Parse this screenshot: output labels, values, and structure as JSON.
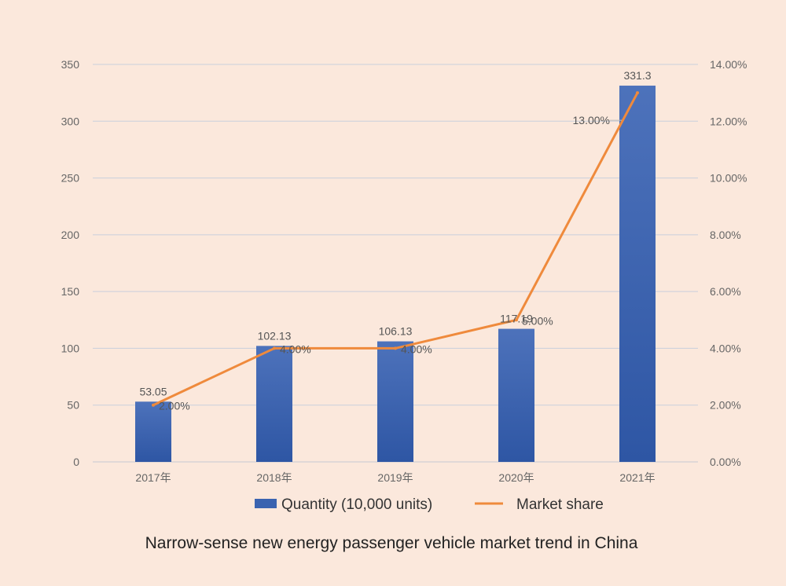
{
  "chart_data": {
    "type": "bar",
    "categories": [
      "2017年",
      "2018年",
      "2019年",
      "2020年",
      "2021年"
    ],
    "series": [
      {
        "name": "Quantity (10,000 units)",
        "type": "bar",
        "axis": "left",
        "values": [
          53.05,
          102.13,
          106.13,
          117.19,
          331.3
        ],
        "labels": [
          "53.05",
          "102.13",
          "106.13",
          "117.19",
          "331.3"
        ]
      },
      {
        "name": "Market share",
        "type": "line",
        "axis": "right",
        "values": [
          2.0,
          4.0,
          4.0,
          5.0,
          13.0
        ],
        "labels": [
          "2.00%",
          "4.00%",
          "4.00%",
          "5.00%",
          "13.00%"
        ]
      }
    ],
    "y_left": {
      "ylim": [
        0,
        350
      ],
      "ticks": [
        0,
        50,
        100,
        150,
        200,
        250,
        300,
        350
      ],
      "tick_labels": [
        "0",
        "50",
        "100",
        "150",
        "200",
        "250",
        "300",
        "350"
      ]
    },
    "y_right": {
      "ylim": [
        0,
        14
      ],
      "ticks": [
        0,
        2,
        4,
        6,
        8,
        10,
        12,
        14
      ],
      "tick_labels": [
        "0.00%",
        "2.00%",
        "4.00%",
        "6.00%",
        "8.00%",
        "10.00%",
        "12.00%",
        "14.00%"
      ]
    },
    "grid": true,
    "legend": "bottom",
    "caption": "Narrow-sense new energy passenger vehicle market trend in China",
    "colors": {
      "bar": "#3a63b0",
      "line": "#ef8a3c",
      "grid": "#c9cfdc",
      "background": "#fbe8dc"
    }
  }
}
